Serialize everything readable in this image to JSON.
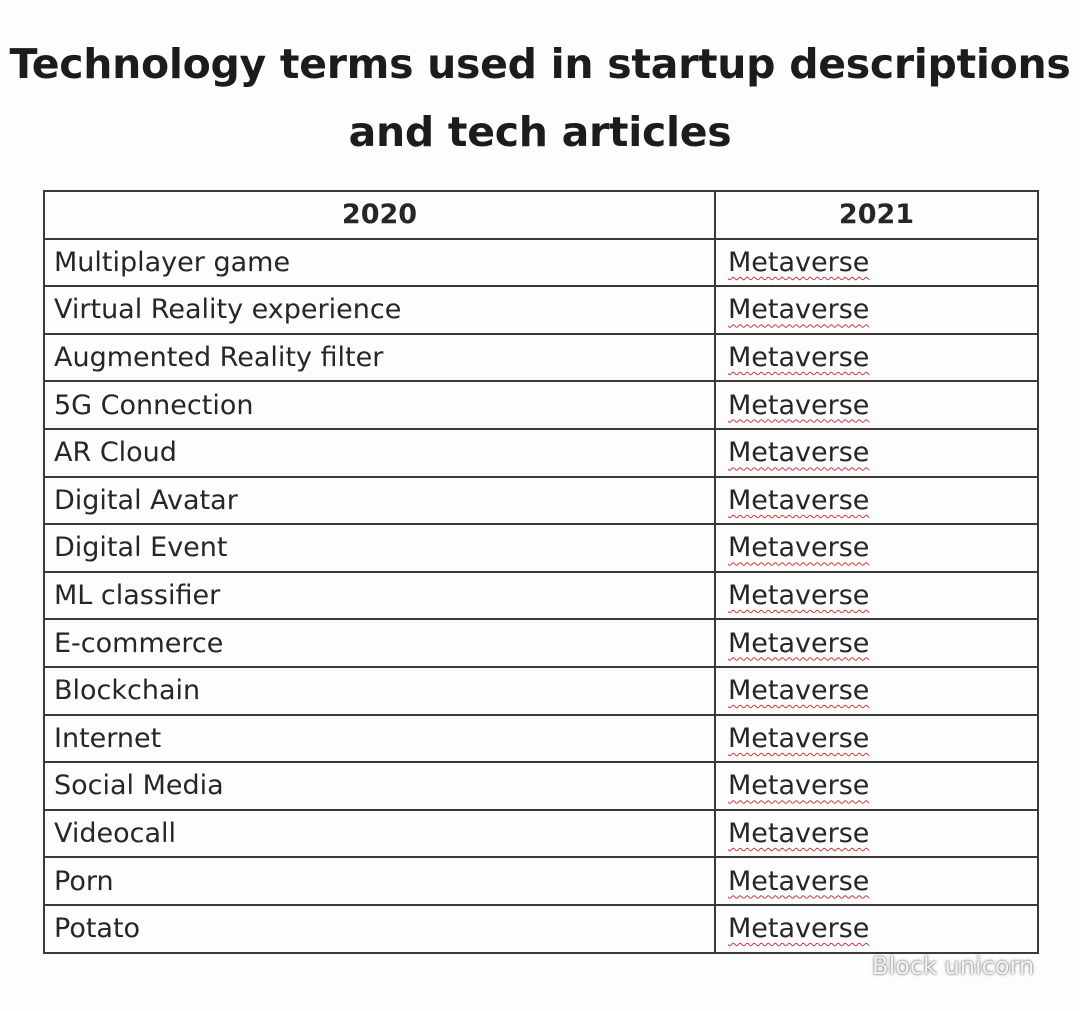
{
  "title": {
    "line1": "Technology terms used in startup descriptions",
    "line2": "and tech articles"
  },
  "table": {
    "headers": [
      "2020",
      "2021"
    ],
    "rows": [
      {
        "term_2020": "Multiplayer game",
        "term_2021": "Metaverse"
      },
      {
        "term_2020": "Virtual Reality experience",
        "term_2021": "Metaverse"
      },
      {
        "term_2020": "Augmented Reality filter",
        "term_2021": "Metaverse"
      },
      {
        "term_2020": "5G Connection",
        "term_2021": "Metaverse"
      },
      {
        "term_2020": "AR Cloud",
        "term_2021": "Metaverse"
      },
      {
        "term_2020": "Digital Avatar",
        "term_2021": "Metaverse"
      },
      {
        "term_2020": "Digital Event",
        "term_2021": "Metaverse"
      },
      {
        "term_2020": "ML classifier",
        "term_2021": "Metaverse"
      },
      {
        "term_2020": "E-commerce",
        "term_2021": "Metaverse"
      },
      {
        "term_2020": "Blockchain",
        "term_2021": "Metaverse"
      },
      {
        "term_2020": "Internet",
        "term_2021": "Metaverse"
      },
      {
        "term_2020": "Social Media",
        "term_2021": "Metaverse"
      },
      {
        "term_2020": "Videocall",
        "term_2021": "Metaverse"
      },
      {
        "term_2020": "Porn",
        "term_2021": "Metaverse"
      },
      {
        "term_2020": "Potato",
        "term_2021": "Metaverse"
      }
    ]
  },
  "watermark": {
    "text": "Block unicorn",
    "icon": "wechat-icon"
  }
}
